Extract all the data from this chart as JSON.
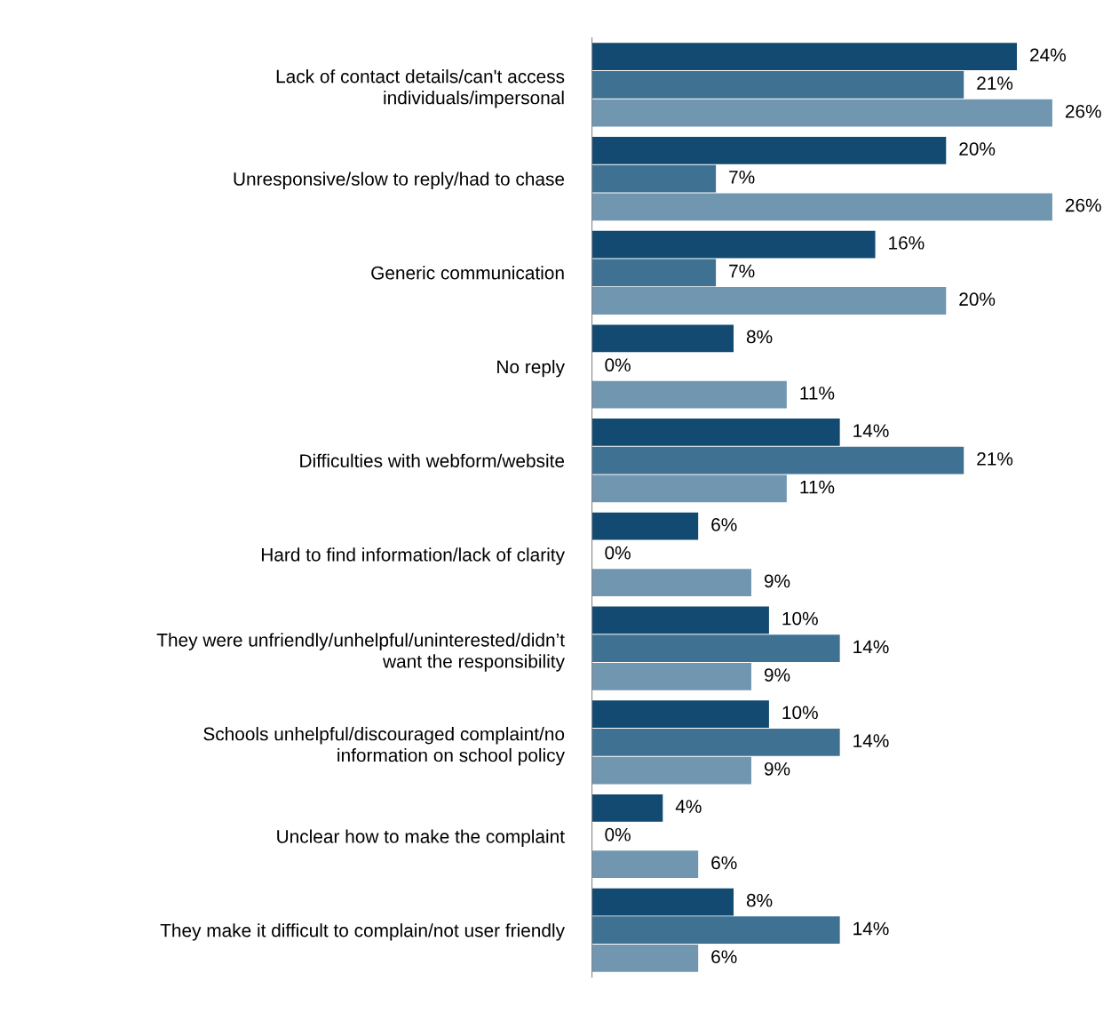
{
  "chart_data": {
    "type": "bar",
    "orientation": "horizontal",
    "categories": [
      "Lack of contact details/can't access\nindividuals/impersonal",
      "Unresponsive/slow to reply/had to chase",
      "Generic communication",
      "No reply",
      "Difficulties with webform/website",
      "Hard to find information/lack of clarity",
      "They were unfriendly/unhelpful/uninterested/didn’t\nwant the responsibility",
      "Schools unhelpful/discouraged complaint/no\ninformation on school policy",
      "Unclear how to make the complaint",
      "They make it difficult to complain/not user friendly"
    ],
    "series": [
      {
        "color": "#124a71",
        "values": [
          24,
          20,
          16,
          8,
          14,
          6,
          10,
          10,
          4,
          8
        ],
        "value_labels": [
          "24%",
          "20%",
          "16%",
          "8%",
          "14%",
          "6%",
          "10%",
          "10%",
          "4%",
          "8%"
        ]
      },
      {
        "color": "#3f7193",
        "values": [
          21,
          7,
          7,
          0,
          21,
          0,
          14,
          14,
          0,
          14
        ],
        "value_labels": [
          "21%",
          "7%",
          "7%",
          "0%",
          "21%",
          "0%",
          "14%",
          "14%",
          "0%",
          "14%"
        ]
      },
      {
        "color": "#7196b0",
        "values": [
          26,
          26,
          20,
          11,
          11,
          9,
          9,
          9,
          6,
          6
        ],
        "value_labels": [
          "26%",
          "26%",
          "20%",
          "11%",
          "11%",
          "9%",
          "9%",
          "9%",
          "6%",
          "6%"
        ]
      }
    ],
    "grid": false,
    "legend": false
  }
}
